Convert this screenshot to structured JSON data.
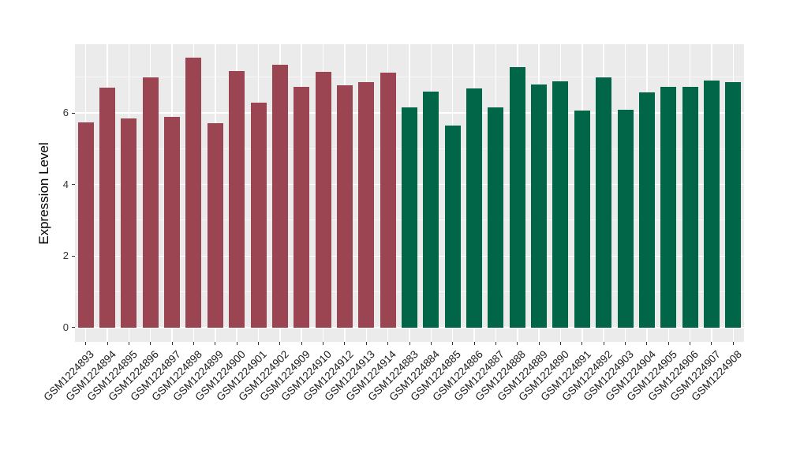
{
  "chart_data": {
    "type": "bar",
    "title": "",
    "xlabel": "",
    "ylabel": "Expression Level",
    "legend": "none",
    "panel_bg": "#EBEBEB",
    "grid": "white major+minor horizontal lines; white vertical lines at category centers",
    "yticks": [
      0,
      2,
      4,
      6
    ],
    "yticks_minor": [
      1,
      3,
      5,
      7
    ],
    "ylim": [
      -0.4,
      7.92
    ],
    "x_tick_rotation_deg": 45,
    "group_colors": {
      "A": "#9B4452",
      "B": "#016648"
    },
    "categories": [
      "GSM1224893",
      "GSM1224894",
      "GSM1224895",
      "GSM1224896",
      "GSM1224897",
      "GSM1224898",
      "GSM1224899",
      "GSM1224900",
      "GSM1224901",
      "GSM1224902",
      "GSM1224909",
      "GSM1224910",
      "GSM1224912",
      "GSM1224913",
      "GSM1224914",
      "GSM1224883",
      "GSM1224884",
      "GSM1224885",
      "GSM1224886",
      "GSM1224887",
      "GSM1224888",
      "GSM1224889",
      "GSM1224890",
      "GSM1224891",
      "GSM1224892",
      "GSM1224903",
      "GSM1224904",
      "GSM1224905",
      "GSM1224906",
      "GSM1224907",
      "GSM1224908"
    ],
    "values": [
      5.74,
      6.71,
      5.85,
      6.99,
      5.9,
      7.54,
      5.72,
      7.18,
      6.29,
      7.35,
      6.73,
      7.14,
      6.77,
      6.85,
      7.13,
      6.16,
      6.6,
      5.64,
      6.69,
      6.15,
      7.29,
      6.79,
      6.88,
      6.07,
      7.0,
      6.08,
      6.57,
      6.73,
      6.73,
      6.91,
      6.86
    ],
    "groups": [
      "A",
      "A",
      "A",
      "A",
      "A",
      "A",
      "A",
      "A",
      "A",
      "A",
      "A",
      "A",
      "A",
      "A",
      "A",
      "B",
      "B",
      "B",
      "B",
      "B",
      "B",
      "B",
      "B",
      "B",
      "B",
      "B",
      "B",
      "B",
      "B",
      "B",
      "B"
    ]
  }
}
